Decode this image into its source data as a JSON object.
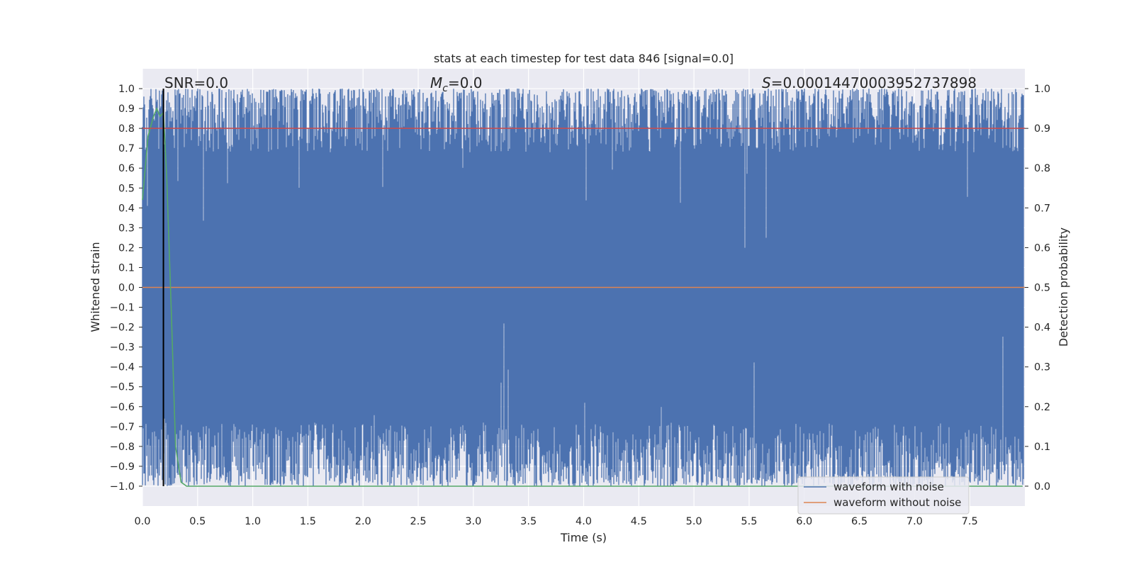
{
  "chart_data": {
    "type": "line",
    "title": "stats at each timestep for test data 846 [signal=0.0]",
    "xlabel": "Time (s)",
    "ylabel": "Whitened strain",
    "y2label": "Detection probability",
    "xlim": [
      0.0,
      8.0
    ],
    "ylim": [
      -1.1,
      1.1
    ],
    "y2lim": [
      -0.05,
      1.05
    ],
    "xticks": [
      "0.0",
      "0.5",
      "1.0",
      "1.5",
      "2.0",
      "2.5",
      "3.0",
      "3.5",
      "4.0",
      "4.5",
      "5.0",
      "5.5",
      "6.0",
      "6.5",
      "7.0",
      "7.5"
    ],
    "yticks": [
      "1.0",
      "0.9",
      "0.8",
      "0.7",
      "0.6",
      "0.5",
      "0.4",
      "0.3",
      "0.2",
      "0.1",
      "0.0",
      "−0.1",
      "−0.2",
      "−0.3",
      "−0.4",
      "−0.5",
      "−0.6",
      "−0.7",
      "−0.8",
      "−0.9",
      "−1.0"
    ],
    "y2ticks": [
      "1.0",
      "0.9",
      "0.8",
      "0.7",
      "0.6",
      "0.5",
      "0.4",
      "0.3",
      "0.2",
      "0.1",
      "0.0"
    ],
    "grid": true,
    "legend_position": "lower-right",
    "annotations": {
      "snr": "SNR=0.0",
      "mc_symbol": "M",
      "mc_sub": "c",
      "mc_value": "=0.0",
      "s_symbol": "S",
      "s_value": "=0.00014470003952737898"
    },
    "marker_line_x": 0.19,
    "threshold_y2": 0.9,
    "series": [
      {
        "name": "waveform with noise",
        "color": "#4c72b0",
        "axis": "left",
        "kind": "noisy-band",
        "range": [
          -1.0,
          1.0
        ]
      },
      {
        "name": "waveform without noise",
        "color": "#dd8452",
        "axis": "left",
        "x": [
          0.0,
          8.0
        ],
        "y": [
          0.0,
          0.0
        ]
      },
      {
        "axis": "right",
        "color": "#55a868",
        "x": [
          0.0,
          0.05,
          0.1,
          0.13,
          0.16,
          0.19,
          0.22,
          0.26,
          0.3,
          0.35,
          0.4,
          1.0,
          3.0,
          5.0,
          7.0,
          7.98
        ],
        "y": [
          0.72,
          0.88,
          0.93,
          0.95,
          0.93,
          0.94,
          0.78,
          0.45,
          0.1,
          0.01,
          0.0,
          0.0,
          0.0,
          0.0,
          0.0,
          0.0
        ]
      },
      {
        "axis": "right",
        "color": "#c44e52",
        "x": [
          0.0,
          8.0
        ],
        "y": [
          0.9,
          0.9
        ]
      }
    ]
  }
}
